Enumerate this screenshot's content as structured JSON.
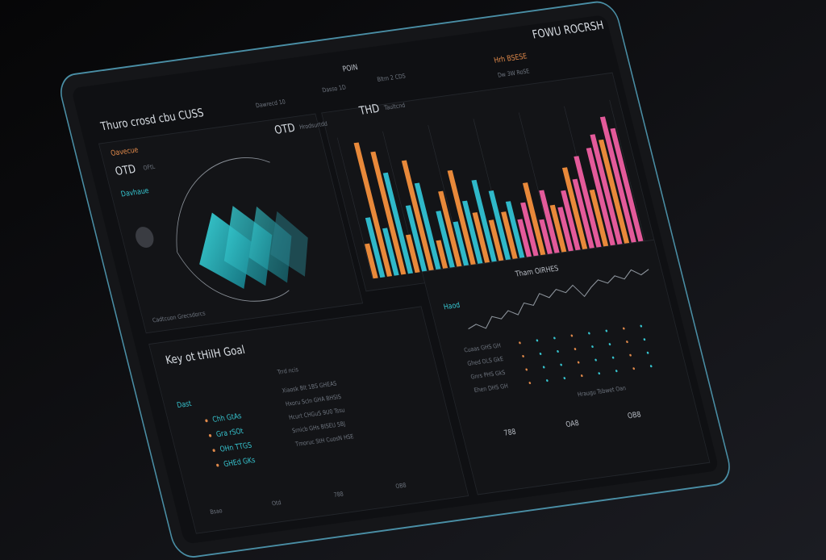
{
  "header": {
    "brand": "FOWU ROCRSH",
    "title": "POIN",
    "subtitle": "Thuro crosd cbu CUSS"
  },
  "nav": [
    "Dawrecd 10",
    "Dasso 1D",
    "Bltm 2 CDS",
    "Hrh BSESE",
    "Dw 3W RoSE"
  ],
  "overview": {
    "label": "Oavecue",
    "stat": "OTD",
    "stat_note": "OFtL",
    "link": "Davhaue",
    "footer": "Cadtcuon Grecsdorcs"
  },
  "kpis": [
    {
      "value": "OTD",
      "label": "Hrodsurtdd"
    },
    {
      "value": "THD",
      "label": "Taultcnd"
    }
  ],
  "bars": {
    "values": [
      22,
      38,
      85,
      30,
      78,
      64,
      24,
      42,
      70,
      55,
      18,
      36,
      48,
      28,
      60,
      40,
      32,
      52,
      26,
      44,
      30,
      36,
      24,
      34,
      46,
      22,
      40,
      30,
      28,
      38,
      52,
      44,
      58,
      36,
      62,
      70,
      66,
      80,
      72
    ],
    "colors": [
      "#e8893a",
      "#2fb8c9",
      "#e35a9a"
    ]
  },
  "goals": {
    "title": "Key ot tHiIH Goal",
    "subtitle": "Trrd ncis",
    "tag": "Dast",
    "items": [
      "Chh GtAs",
      "Gra rSOt",
      "OHn TTGS",
      "GHEd GKs"
    ],
    "rows": [
      "Xiaosk Blt 1BS GHEAS",
      "Hxoru ScIn GHA BHSIS",
      "Hcurt CHGuS 9U0 Tssu",
      "Srnicb GHs BISEU SBJ",
      "Tmoruc StH CuosN HSE"
    ],
    "footer": [
      "Bsao",
      "Otd",
      "788",
      "OB8"
    ]
  },
  "activity": {
    "title": "Tham OIRHES",
    "legend": "Haod",
    "trend": [
      30,
      34,
      28,
      40,
      36,
      44,
      38,
      50,
      46,
      58,
      52,
      60,
      55,
      62,
      48,
      57,
      64,
      59,
      66,
      61,
      70,
      63,
      68
    ],
    "rows": [
      "Cuaas GHS GH",
      "Ghed OLS GkE",
      "Gnrs PHS GkS",
      "Ehen DHS GH"
    ],
    "stats": [
      "788",
      "OA8",
      "OB8"
    ],
    "note": "Hraugu Tsbwet Oan"
  }
}
